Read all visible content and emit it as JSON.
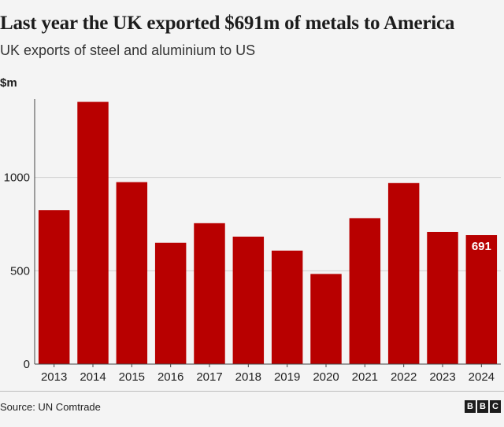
{
  "chart_data": {
    "type": "bar",
    "title": "Last year the UK exported $691m of metals to America",
    "subtitle": "UK exports of steel and aluminium to US",
    "ylabel": "$m",
    "xlabel": "",
    "categories": [
      "2013",
      "2014",
      "2015",
      "2016",
      "2017",
      "2018",
      "2019",
      "2020",
      "2021",
      "2022",
      "2023",
      "2024"
    ],
    "values": [
      825,
      1405,
      975,
      650,
      755,
      683,
      608,
      483,
      782,
      970,
      708,
      691
    ],
    "ylim": [
      0,
      1420
    ],
    "yticks": [
      0,
      500,
      1000
    ],
    "grid": true,
    "bar_color": "#b80000",
    "highlight_label": {
      "category": "2024",
      "text": "691"
    },
    "source": "Source: UN Comtrade",
    "logo_letters": [
      "B",
      "B",
      "C"
    ]
  }
}
